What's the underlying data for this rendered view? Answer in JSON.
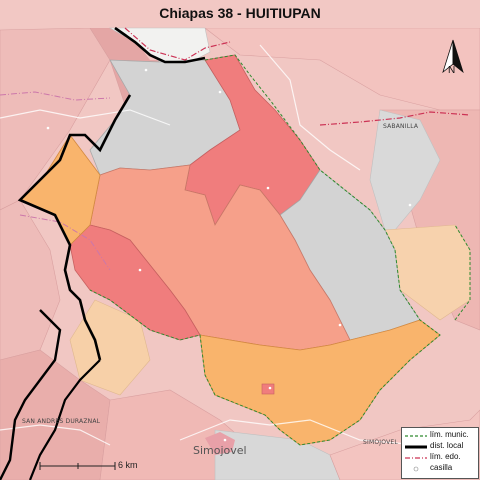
{
  "title": "Chiapas 38 - HUITIUPAN",
  "north_label": "N",
  "places": [
    {
      "name": "SABANILLA"
    },
    {
      "name": "SAN ANDRES DURAZNAL"
    },
    {
      "name": "SIMOJOVEL"
    },
    {
      "name": "Simojovel"
    }
  ],
  "scale": {
    "label": "6 km"
  },
  "legend": [
    {
      "label": "lím. munic.",
      "color": "#2e8b2e",
      "style": "dashed-green"
    },
    {
      "label": "dist. local",
      "color": "#000000",
      "style": "thick-black"
    },
    {
      "label": "lím. edo.",
      "color": "#cc3355",
      "style": "dashed-red"
    },
    {
      "label": "casilla",
      "color": "#ffffff",
      "style": "circle"
    }
  ],
  "colors": {
    "background": "#f1c7c3",
    "neighbor_pink": "#f0b8b6",
    "neighbor_gray": "#d3d3d3",
    "zone_red": "#f07d7d",
    "zone_salmon": "#f6a08a",
    "zone_orange": "#f9b46c",
    "zone_peach": "#f7d0a8",
    "district_line": "#000000",
    "municipal_line": "#2e8b2e",
    "state_line": "#cc3355"
  }
}
